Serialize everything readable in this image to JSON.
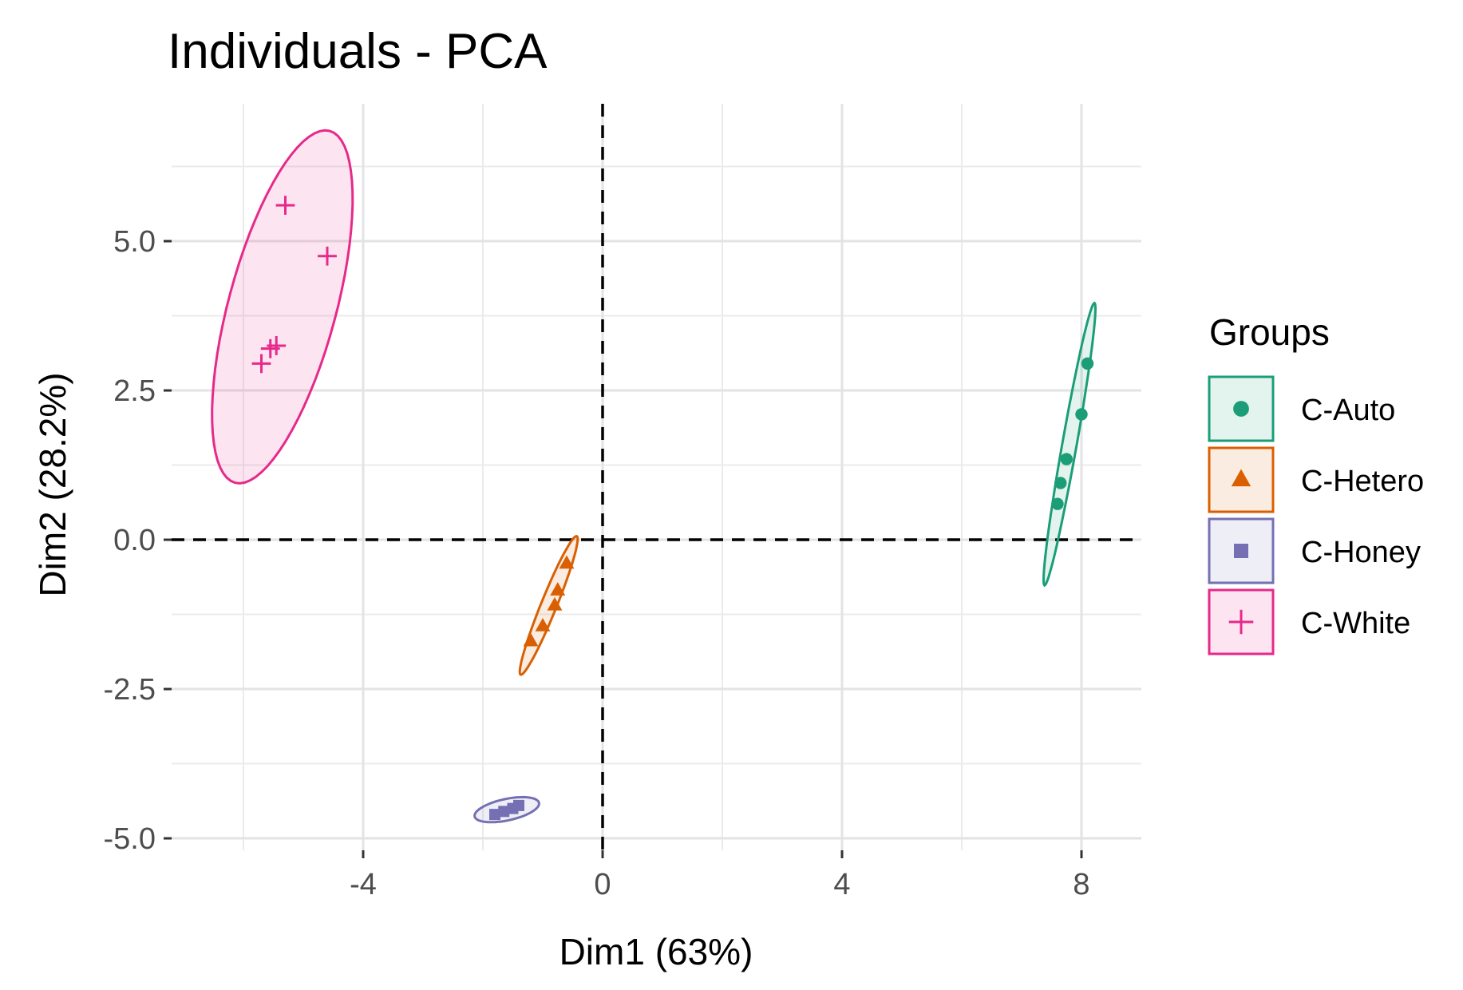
{
  "chart_data": {
    "type": "scatter",
    "title": "Individuals - PCA",
    "xlabel": "Dim1 (63%)",
    "ylabel": "Dim2 (28.2%)",
    "xlim": [
      -7.2,
      9.0
    ],
    "ylim": [
      -5.2,
      7.3
    ],
    "x_ticks": [
      -4,
      0,
      4,
      8
    ],
    "x_tick_labels": [
      "-4",
      "0",
      "4",
      "8"
    ],
    "y_ticks": [
      -5.0,
      -2.5,
      0.0,
      2.5,
      5.0
    ],
    "y_tick_labels": [
      "-5.0",
      "-2.5",
      "0.0",
      "2.5",
      "5.0"
    ],
    "grid": true,
    "reference_lines": {
      "x": 0,
      "y": 0,
      "style": "dashed"
    },
    "legend": {
      "title": "Groups",
      "position": "right"
    },
    "series": [
      {
        "name": "C-Auto",
        "marker": "circle",
        "color": "#1b9e77",
        "points": [
          [
            8.1,
            2.95
          ],
          [
            8.0,
            2.1
          ],
          [
            7.75,
            1.35
          ],
          [
            7.65,
            0.95
          ],
          [
            7.6,
            0.6
          ]
        ],
        "ellipse": {
          "cx": 7.8,
          "cy": 1.6,
          "rx": 2.4,
          "ry": 0.12,
          "angle_deg": 80
        }
      },
      {
        "name": "C-Hetero",
        "marker": "triangle",
        "color": "#d95f02",
        "points": [
          [
            -0.6,
            -0.4
          ],
          [
            -0.75,
            -0.85
          ],
          [
            -0.8,
            -1.1
          ],
          [
            -1.0,
            -1.45
          ],
          [
            -1.2,
            -1.7
          ]
        ],
        "ellipse": {
          "cx": -0.9,
          "cy": -1.1,
          "rx": 1.25,
          "ry": 0.13,
          "angle_deg": 68
        }
      },
      {
        "name": "C-Honey",
        "marker": "square",
        "color": "#7570b3",
        "points": [
          [
            -1.8,
            -4.6
          ],
          [
            -1.65,
            -4.55
          ],
          [
            -1.5,
            -4.5
          ],
          [
            -1.4,
            -4.45
          ]
        ],
        "ellipse": {
          "cx": -1.6,
          "cy": -4.52,
          "rx": 0.55,
          "ry": 0.18,
          "angle_deg": 12
        }
      },
      {
        "name": "C-White",
        "marker": "plus",
        "color": "#e7298a",
        "points": [
          [
            -5.3,
            5.6
          ],
          [
            -4.6,
            4.75
          ],
          [
            -5.45,
            3.25
          ],
          [
            -5.55,
            3.2
          ],
          [
            -5.7,
            2.95
          ]
        ],
        "ellipse": {
          "cx": -5.35,
          "cy": 3.9,
          "rx": 3.05,
          "ry": 0.9,
          "angle_deg": 75
        }
      }
    ]
  }
}
